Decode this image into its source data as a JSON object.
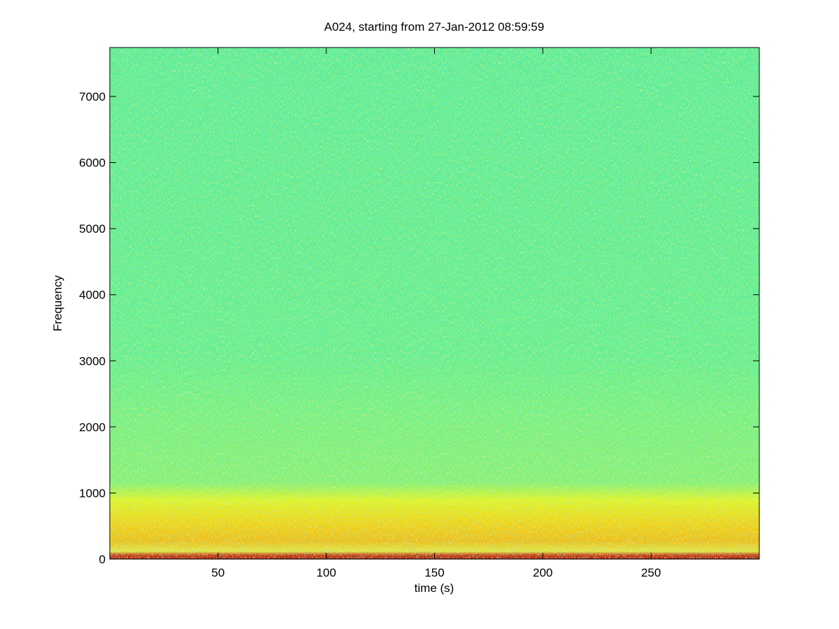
{
  "chart_data": {
    "type": "spectrogram",
    "title": "A024, starting from 27-Jan-2012 08:59:59",
    "xlabel": "time (s)",
    "ylabel": "Frequency",
    "xlim": [
      0,
      300
    ],
    "xticks": [
      50,
      100,
      150,
      200,
      250
    ],
    "ylim": [
      0,
      7740
    ],
    "yticks": [
      0,
      1000,
      2000,
      3000,
      4000,
      5000,
      6000,
      7000
    ]
  }
}
